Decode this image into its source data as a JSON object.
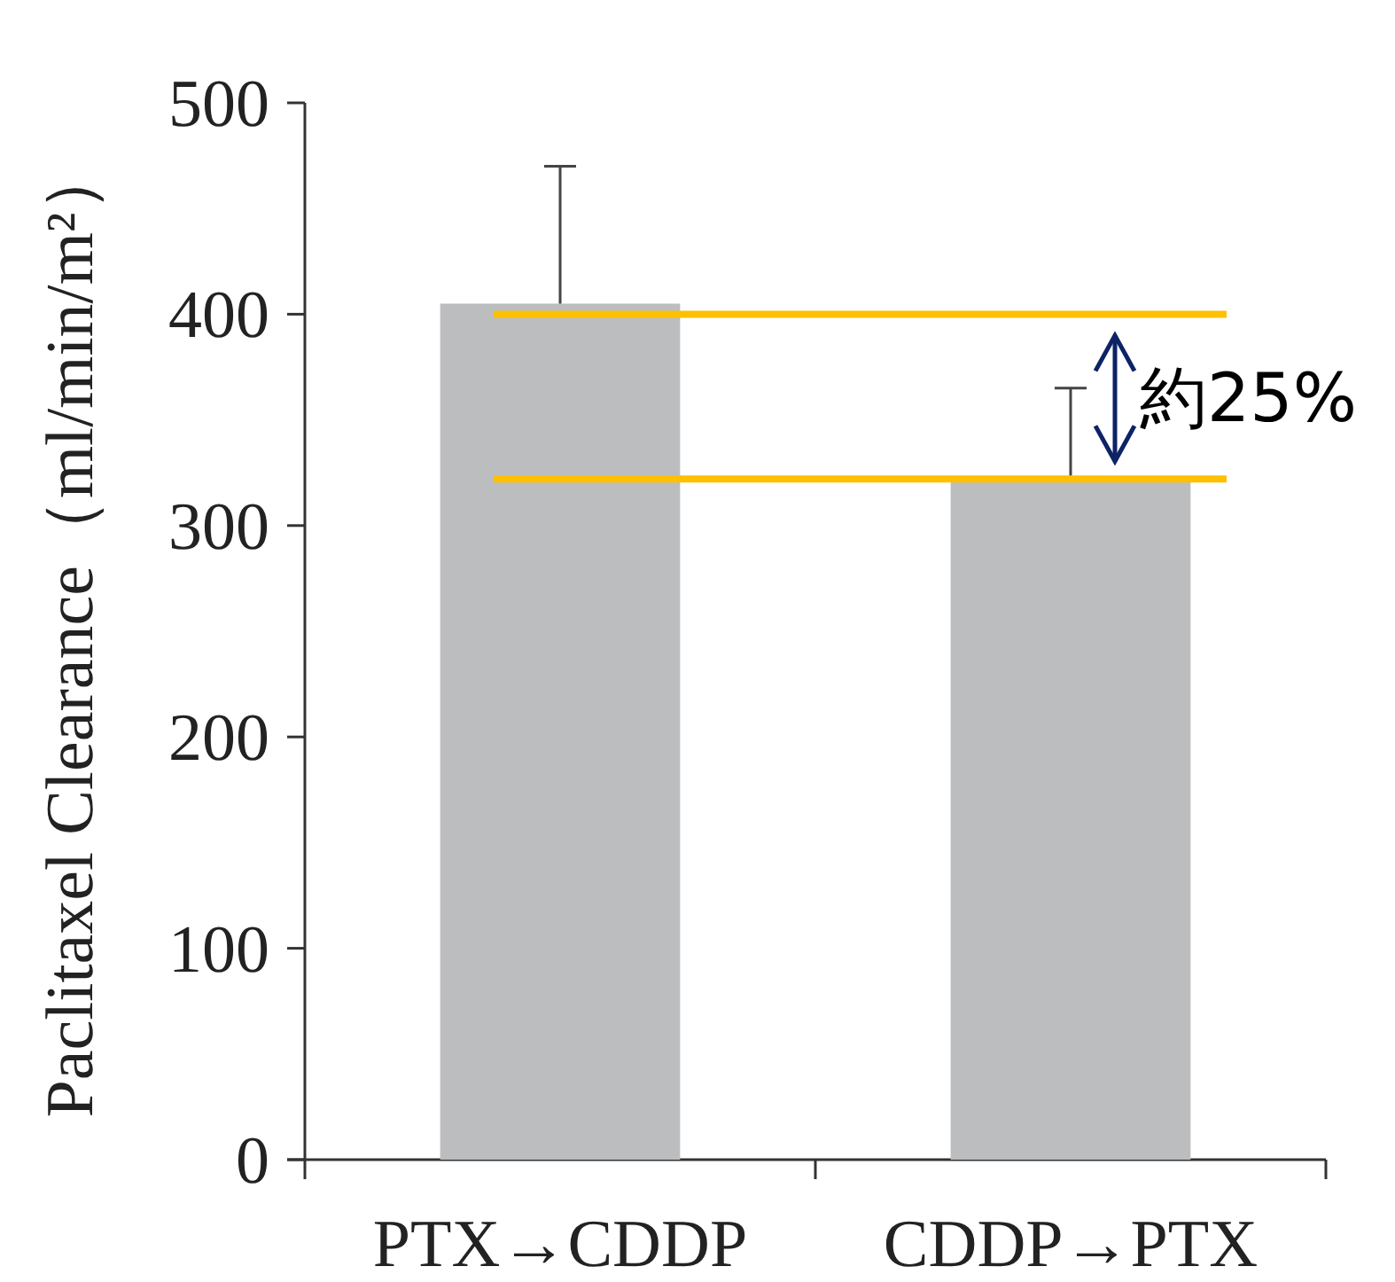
{
  "chart_data": {
    "type": "bar",
    "ylabel": "Paclitaxel Clearance（ml/min/m²）",
    "categories": [
      "PTX→CDDP",
      "CDDP→PTX"
    ],
    "values": [
      405,
      322
    ],
    "color": "#bcbdbf",
    "errors": [
      [
        405,
        470
      ],
      [
        322,
        365
      ]
    ],
    "ylim": [
      0,
      500
    ],
    "yticks": [
      0,
      100,
      200,
      300,
      400,
      500
    ],
    "ref_lines": [
      {
        "axis": "y",
        "value": 400,
        "color": "#ffc000"
      },
      {
        "axis": "y",
        "value": 322,
        "color": "#ffc000"
      }
    ],
    "annotations": [
      "約25%"
    ]
  }
}
